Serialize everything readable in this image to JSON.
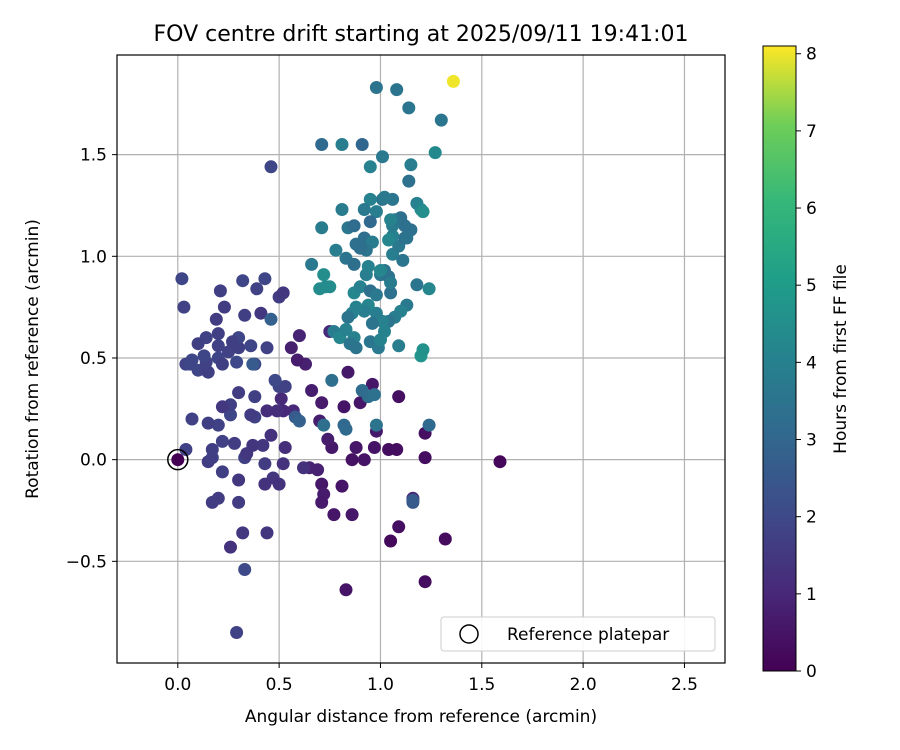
{
  "chart_data": {
    "type": "scatter",
    "title": "FOV centre drift starting at 2025/09/11 19:41:01",
    "xlabel": "Angular distance from reference (arcmin)",
    "ylabel": "Rotation from reference (arcmin)",
    "xlim": [
      -0.3,
      2.7
    ],
    "ylim": [
      -1.0,
      1.99
    ],
    "xticks": [
      "0.0",
      "0.5",
      "1.0",
      "1.5",
      "2.0",
      "2.5"
    ],
    "xtick_values": [
      0.0,
      0.5,
      1.0,
      1.5,
      2.0,
      2.5
    ],
    "yticks": [
      "−0.5",
      "0.0",
      "0.5",
      "1.0",
      "1.5"
    ],
    "ytick_values": [
      -0.5,
      0.0,
      0.5,
      1.0,
      1.5
    ],
    "grid": true,
    "colormap": "viridis",
    "colorbar": {
      "label": "Hours from first FF file",
      "range": [
        0,
        8.1
      ],
      "ticks": [
        "0",
        "1",
        "2",
        "3",
        "4",
        "5",
        "6",
        "7",
        "8"
      ],
      "tick_values": [
        0,
        1,
        2,
        3,
        4,
        5,
        6,
        7,
        8
      ]
    },
    "legend": {
      "position": "lower-right",
      "label": "Reference platepar"
    },
    "reference_point": {
      "x": 0.0,
      "y": 0.0
    },
    "points": [
      [
        0.0,
        0.0,
        0.0
      ],
      [
        1.59,
        -0.01,
        0.15
      ],
      [
        1.32,
        -0.39,
        0.25
      ],
      [
        1.22,
        -0.6,
        0.3
      ],
      [
        1.05,
        -0.4,
        0.2
      ],
      [
        1.09,
        -0.33,
        0.4
      ],
      [
        1.04,
        0.05,
        0.3
      ],
      [
        1.08,
        0.05,
        0.35
      ],
      [
        1.22,
        0.01,
        0.3
      ],
      [
        1.22,
        0.13,
        0.35
      ],
      [
        1.09,
        0.31,
        0.4
      ],
      [
        0.97,
        0.06,
        0.5
      ],
      [
        0.98,
        0.14,
        0.6
      ],
      [
        0.9,
        0.28,
        0.55
      ],
      [
        0.96,
        0.37,
        0.55
      ],
      [
        0.84,
        0.43,
        0.6
      ],
      [
        0.82,
        0.26,
        0.5
      ],
      [
        0.86,
        0.0,
        0.45
      ],
      [
        0.92,
        0.0,
        0.5
      ],
      [
        0.88,
        0.06,
        0.55
      ],
      [
        0.76,
        0.06,
        0.6
      ],
      [
        0.74,
        0.1,
        0.7
      ],
      [
        0.7,
        0.19,
        0.75
      ],
      [
        0.71,
        0.28,
        0.65
      ],
      [
        0.66,
        0.34,
        0.75
      ],
      [
        0.63,
        0.47,
        0.8
      ],
      [
        0.59,
        0.49,
        0.7
      ],
      [
        0.56,
        0.55,
        0.8
      ],
      [
        0.6,
        0.61,
        0.9
      ],
      [
        0.75,
        0.63,
        1.0
      ],
      [
        0.65,
        -0.04,
        0.9
      ],
      [
        0.69,
        -0.05,
        0.85
      ],
      [
        0.71,
        -0.12,
        0.6
      ],
      [
        0.72,
        -0.17,
        0.7
      ],
      [
        0.71,
        -0.21,
        0.65
      ],
      [
        0.77,
        -0.27,
        0.55
      ],
      [
        0.81,
        -0.13,
        0.5
      ],
      [
        0.86,
        -0.27,
        0.55
      ],
      [
        0.83,
        -0.64,
        0.5
      ],
      [
        1.16,
        -0.19,
        1.0
      ],
      [
        1.16,
        -0.21,
        2.5
      ],
      [
        0.57,
        0.24,
        1.0
      ],
      [
        0.51,
        0.3,
        1.1
      ],
      [
        0.52,
        0.24,
        1.05
      ],
      [
        0.49,
        0.24,
        1.2
      ],
      [
        0.44,
        0.24,
        1.2
      ],
      [
        0.46,
        0.12,
        1.3
      ],
      [
        0.53,
        0.06,
        1.2
      ],
      [
        0.52,
        -0.02,
        1.3
      ],
      [
        0.62,
        -0.04,
        1.3
      ],
      [
        0.47,
        -0.09,
        1.4
      ],
      [
        0.5,
        -0.12,
        1.3
      ],
      [
        0.43,
        -0.12,
        1.3
      ],
      [
        0.44,
        -0.36,
        1.4
      ],
      [
        0.32,
        -0.36,
        1.5
      ],
      [
        0.3,
        -0.21,
        1.6
      ],
      [
        0.3,
        -0.1,
        1.5
      ],
      [
        0.26,
        -0.43,
        1.3
      ],
      [
        0.33,
        -0.54,
        2.0
      ],
      [
        0.29,
        -0.85,
        1.8
      ],
      [
        0.17,
        -0.21,
        1.6
      ],
      [
        0.2,
        -0.19,
        1.6
      ],
      [
        0.22,
        -0.06,
        1.7
      ],
      [
        0.15,
        -0.01,
        1.6
      ],
      [
        0.17,
        0.01,
        1.7
      ],
      [
        0.17,
        0.05,
        1.7
      ],
      [
        0.22,
        0.09,
        1.8
      ],
      [
        0.28,
        0.08,
        1.6
      ],
      [
        0.33,
        0.01,
        1.7
      ],
      [
        0.34,
        0.03,
        1.5
      ],
      [
        0.37,
        0.07,
        1.4
      ],
      [
        0.42,
        0.07,
        1.5
      ],
      [
        0.43,
        -0.02,
        1.6
      ],
      [
        0.38,
        0.21,
        1.8
      ],
      [
        0.36,
        0.22,
        1.6
      ],
      [
        0.26,
        0.22,
        1.9
      ],
      [
        0.26,
        0.27,
        1.7
      ],
      [
        0.22,
        0.26,
        1.5
      ],
      [
        0.2,
        0.17,
        1.8
      ],
      [
        0.15,
        0.18,
        1.7
      ],
      [
        0.07,
        0.2,
        1.8
      ],
      [
        0.04,
        0.05,
        1.8
      ],
      [
        0.3,
        0.33,
        1.6
      ],
      [
        0.38,
        0.31,
        1.7
      ],
      [
        0.5,
        0.36,
        1.9
      ],
      [
        0.53,
        0.36,
        1.8
      ],
      [
        0.48,
        0.39,
        2.0
      ],
      [
        0.38,
        0.47,
        2.0
      ],
      [
        0.29,
        0.48,
        2.0
      ],
      [
        0.2,
        0.5,
        1.9
      ],
      [
        0.25,
        0.53,
        1.8
      ],
      [
        0.3,
        0.55,
        1.7
      ],
      [
        0.36,
        0.56,
        1.9
      ],
      [
        0.44,
        0.55,
        1.8
      ],
      [
        0.3,
        0.6,
        1.9
      ],
      [
        0.27,
        0.58,
        1.7
      ],
      [
        0.2,
        0.62,
        1.7
      ],
      [
        0.14,
        0.6,
        1.8
      ],
      [
        0.1,
        0.57,
        1.7
      ],
      [
        0.07,
        0.49,
        1.9
      ],
      [
        0.04,
        0.47,
        1.8
      ],
      [
        0.06,
        0.47,
        1.9
      ],
      [
        0.1,
        0.44,
        1.9
      ],
      [
        0.14,
        0.44,
        1.8
      ],
      [
        0.15,
        0.43,
        1.7
      ],
      [
        0.14,
        0.48,
        1.8
      ],
      [
        0.22,
        0.47,
        1.7
      ],
      [
        0.2,
        0.56,
        1.8
      ],
      [
        0.13,
        0.51,
        1.9
      ],
      [
        0.19,
        0.69,
        1.6
      ],
      [
        0.23,
        0.75,
        1.6
      ],
      [
        0.21,
        0.83,
        1.7
      ],
      [
        0.33,
        0.71,
        1.7
      ],
      [
        0.41,
        0.72,
        1.5
      ],
      [
        0.32,
        0.88,
        1.9
      ],
      [
        0.39,
        0.84,
        1.8
      ],
      [
        0.43,
        0.89,
        1.9
      ],
      [
        0.5,
        0.8,
        1.6
      ],
      [
        0.52,
        0.82,
        1.5
      ],
      [
        0.46,
        0.69,
        2.8
      ],
      [
        0.37,
        0.47,
        2.6
      ],
      [
        0.58,
        0.21,
        2.6
      ],
      [
        0.6,
        0.19,
        2.8
      ],
      [
        0.02,
        0.89,
        1.9
      ],
      [
        0.03,
        0.75,
        1.8
      ],
      [
        0.46,
        1.44,
        1.9
      ],
      [
        0.72,
        0.17,
        3.3
      ],
      [
        0.76,
        0.39,
        3.3
      ],
      [
        0.82,
        0.17,
        3.1
      ],
      [
        0.83,
        0.15,
        3.1
      ],
      [
        0.98,
        0.17,
        3.5
      ],
      [
        0.94,
        0.31,
        3.3
      ],
      [
        0.91,
        0.34,
        3.2
      ],
      [
        0.97,
        0.32,
        3.4
      ],
      [
        1.16,
        -0.2,
        2.6
      ],
      [
        1.24,
        0.17,
        3.1
      ],
      [
        0.71,
        1.55,
        3.1
      ],
      [
        0.81,
        1.55,
        3.9
      ],
      [
        0.91,
        1.55,
        3.0
      ],
      [
        0.98,
        1.83,
        3.5
      ],
      [
        1.08,
        1.82,
        3.5
      ],
      [
        1.14,
        1.73,
        3.6
      ],
      [
        1.3,
        1.67,
        3.6
      ],
      [
        1.27,
        1.51,
        4.3
      ],
      [
        1.01,
        1.49,
        3.7
      ],
      [
        0.95,
        1.44,
        4.0
      ],
      [
        1.15,
        1.45,
        3.9
      ],
      [
        1.14,
        1.37,
        3.4
      ],
      [
        1.01,
        1.28,
        3.5
      ],
      [
        0.95,
        1.28,
        4.0
      ],
      [
        0.98,
        1.22,
        3.9
      ],
      [
        0.95,
        1.17,
        3.1
      ],
      [
        0.92,
        1.23,
        3.7
      ],
      [
        0.81,
        1.23,
        3.8
      ],
      [
        0.84,
        1.14,
        3.6
      ],
      [
        0.87,
        1.15,
        3.2
      ],
      [
        0.88,
        1.06,
        3.4
      ],
      [
        0.92,
        1.09,
        3.3
      ],
      [
        0.96,
        1.07,
        3.8
      ],
      [
        0.93,
        1.03,
        3.5
      ],
      [
        0.9,
        1.04,
        3.3
      ],
      [
        0.78,
        1.03,
        3.9
      ],
      [
        0.71,
        1.14,
        3.8
      ],
      [
        0.83,
        0.99,
        3.5
      ],
      [
        0.87,
        0.96,
        3.3
      ],
      [
        0.93,
        0.91,
        3.9
      ],
      [
        0.94,
        0.95,
        4.0
      ],
      [
        1.0,
        0.91,
        3.6
      ],
      [
        1.02,
        0.93,
        3.5
      ],
      [
        1.04,
        0.9,
        3.4
      ],
      [
        1.06,
        1.01,
        3.9
      ],
      [
        1.09,
        1.05,
        3.7
      ],
      [
        1.12,
        1.09,
        3.3
      ],
      [
        1.11,
        0.98,
        3.6
      ],
      [
        1.13,
        1.09,
        3.5
      ],
      [
        1.15,
        1.13,
        3.4
      ],
      [
        1.12,
        1.15,
        3.4
      ],
      [
        1.06,
        1.1,
        4.0
      ],
      [
        1.06,
        1.15,
        3.8
      ],
      [
        1.04,
        1.08,
        4.2
      ],
      [
        1.1,
        1.19,
        3.3
      ],
      [
        1.07,
        1.18,
        3.5
      ],
      [
        1.06,
        1.28,
        3.6
      ],
      [
        1.02,
        1.29,
        3.7
      ],
      [
        1.05,
        1.18,
        4.1
      ],
      [
        1.18,
        1.26,
        4.0
      ],
      [
        1.2,
        1.23,
        4.2
      ],
      [
        1.21,
        1.22,
        4.5
      ],
      [
        1.18,
        0.86,
        3.6
      ],
      [
        1.24,
        0.84,
        4.2
      ],
      [
        1.13,
        0.76,
        3.7
      ],
      [
        1.1,
        0.73,
        4.0
      ],
      [
        1.07,
        0.7,
        3.8
      ],
      [
        1.04,
        0.68,
        3.6
      ],
      [
        1.02,
        0.63,
        4.1
      ],
      [
        1.01,
        0.68,
        4.0
      ],
      [
        0.98,
        0.72,
        3.9
      ],
      [
        0.96,
        0.67,
        3.5
      ],
      [
        0.94,
        0.76,
        4.2
      ],
      [
        0.92,
        0.73,
        3.9
      ],
      [
        0.88,
        0.75,
        4.1
      ],
      [
        0.86,
        0.72,
        4.0
      ],
      [
        0.84,
        0.7,
        3.5
      ],
      [
        0.87,
        0.82,
        4.2
      ],
      [
        0.9,
        0.85,
        4.0
      ],
      [
        0.95,
        0.83,
        3.3
      ],
      [
        0.98,
        0.81,
        3.7
      ],
      [
        1.05,
        0.82,
        3.4
      ],
      [
        1.05,
        0.87,
        3.8
      ],
      [
        1.0,
        0.93,
        4.2
      ],
      [
        0.73,
        0.85,
        4.3
      ],
      [
        0.72,
        0.91,
        4.5
      ],
      [
        0.75,
        0.85,
        4.4
      ],
      [
        0.66,
        0.96,
        3.7
      ],
      [
        0.77,
        0.63,
        3.8
      ],
      [
        0.8,
        0.6,
        4.2
      ],
      [
        0.83,
        0.64,
        4.0
      ],
      [
        0.87,
        0.6,
        4.1
      ],
      [
        0.85,
        0.57,
        3.6
      ],
      [
        0.88,
        0.55,
        3.5
      ],
      [
        0.95,
        0.58,
        3.6
      ],
      [
        0.99,
        0.55,
        3.7
      ],
      [
        1.0,
        0.59,
        4.1
      ],
      [
        1.09,
        0.56,
        3.9
      ],
      [
        1.2,
        0.51,
        4.7
      ],
      [
        1.21,
        0.54,
        4.6
      ],
      [
        0.7,
        0.84,
        4.4
      ],
      [
        1.36,
        1.86,
        8.0
      ]
    ]
  }
}
